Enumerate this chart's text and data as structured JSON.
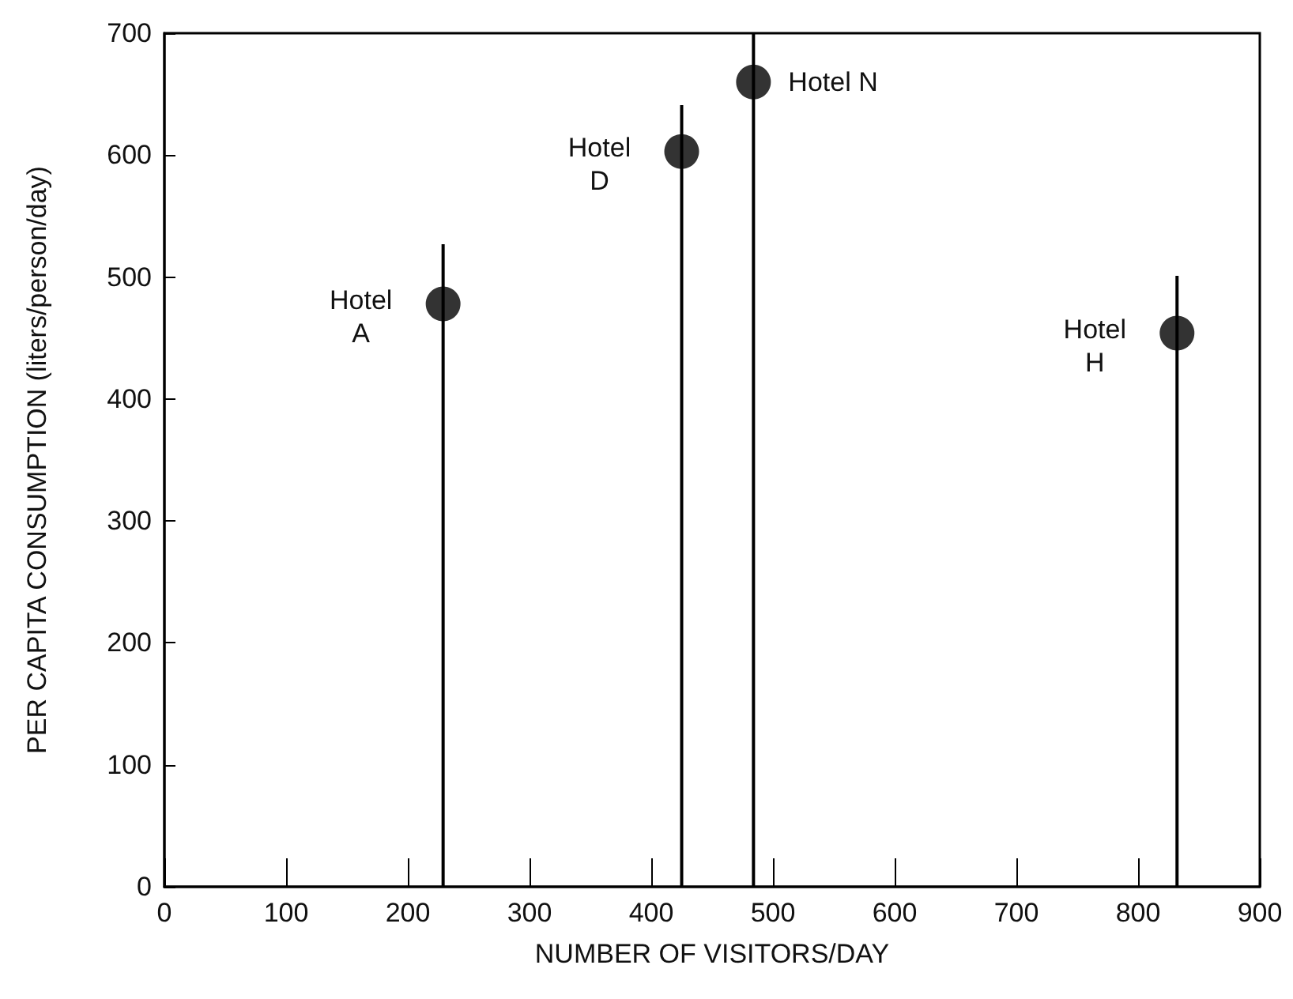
{
  "chart_data": {
    "type": "scatter",
    "xlabel": "NUMBER OF VISITORS/DAY",
    "ylabel": "PER CAPITA CONSUMPTION (liters/person/day)",
    "x": [
      229,
      425,
      484,
      832
    ],
    "values": [
      478,
      603,
      660,
      454
    ],
    "errors": [
      [
        0,
        527
      ],
      [
        0,
        641
      ],
      [
        0,
        700
      ],
      [
        0,
        501
      ]
    ],
    "color": "#000000",
    "marker": "circle",
    "grid": false,
    "xlim": [
      0,
      900
    ],
    "xticks": [
      0,
      100,
      200,
      300,
      400,
      500,
      600,
      700,
      800,
      900
    ],
    "ylim": [
      0,
      700
    ],
    "yticks": [
      0,
      100,
      200,
      300,
      400,
      500,
      600,
      700
    ],
    "annotations": [
      {
        "text": "Hotel A",
        "x": 229,
        "y": 478
      },
      {
        "text": "Hotel D",
        "x": 425,
        "y": 603
      },
      {
        "text": "Hotel N",
        "x": 484,
        "y": 660
      },
      {
        "text": "Hotel H",
        "x": 832,
        "y": 454
      }
    ]
  }
}
